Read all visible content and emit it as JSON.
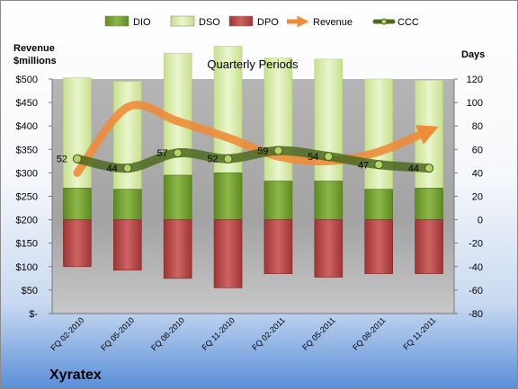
{
  "chart_data": {
    "type": "bar",
    "subtitle": "Quarterly Periods",
    "company": "Xyratex",
    "left_axis_title": [
      "Revenue",
      "$millions"
    ],
    "right_axis_title": "Days",
    "categories": [
      "FQ 02-2010",
      "FQ 05-2010",
      "FQ 08-2010",
      "FQ 11-2010",
      "FQ 02-2011",
      "FQ 05-2011",
      "FQ 08-2011",
      "FQ 11-2011"
    ],
    "y_left": {
      "min": 0,
      "max": 500,
      "step": 50,
      "tick_labels": [
        "$-",
        "$50",
        "$100",
        "$150",
        "$200",
        "$250",
        "$300",
        "$350",
        "$400",
        "$450",
        "$500"
      ]
    },
    "y_right": {
      "min": -80,
      "max": 120,
      "step": 20,
      "tick_labels": [
        "-80",
        "-60",
        "-40",
        "-20",
        "0",
        "20",
        "40",
        "60",
        "80",
        "100",
        "120"
      ]
    },
    "legend": [
      "DIO",
      "DSO",
      "DPO",
      "Revenue",
      "CCC"
    ],
    "legend_placement": "top",
    "grid": false,
    "colors": {
      "DIO": "#77a033",
      "DSO": "#dbeeaf",
      "DPO": "#b84a4a",
      "Revenue": "#ee8c3a",
      "CCC": "#4d6a1e",
      "plot_bg": "#a9a9a9"
    },
    "series": [
      {
        "name": "DIO",
        "axis": "right",
        "values": [
          27,
          26,
          38,
          40,
          33,
          33,
          26,
          27
        ]
      },
      {
        "name": "DSO",
        "axis": "right",
        "values": [
          94,
          92,
          104,
          108,
          105,
          104,
          94,
          92
        ]
      },
      {
        "name": "DPO",
        "axis": "right",
        "values": [
          -40,
          -43,
          -50,
          -58,
          -46,
          -49,
          -46,
          -46
        ]
      },
      {
        "name": "Revenue",
        "axis": "left",
        "values": [
          300,
          440,
          410,
          375,
          335,
          325,
          345,
          390
        ]
      },
      {
        "name": "CCC",
        "axis": "right",
        "values": [
          52,
          44,
          57,
          52,
          59,
          54,
          47,
          44
        ]
      }
    ],
    "data_labels": [
      "52",
      "44",
      "57",
      "52",
      "59",
      "54",
      "47",
      "44"
    ]
  }
}
